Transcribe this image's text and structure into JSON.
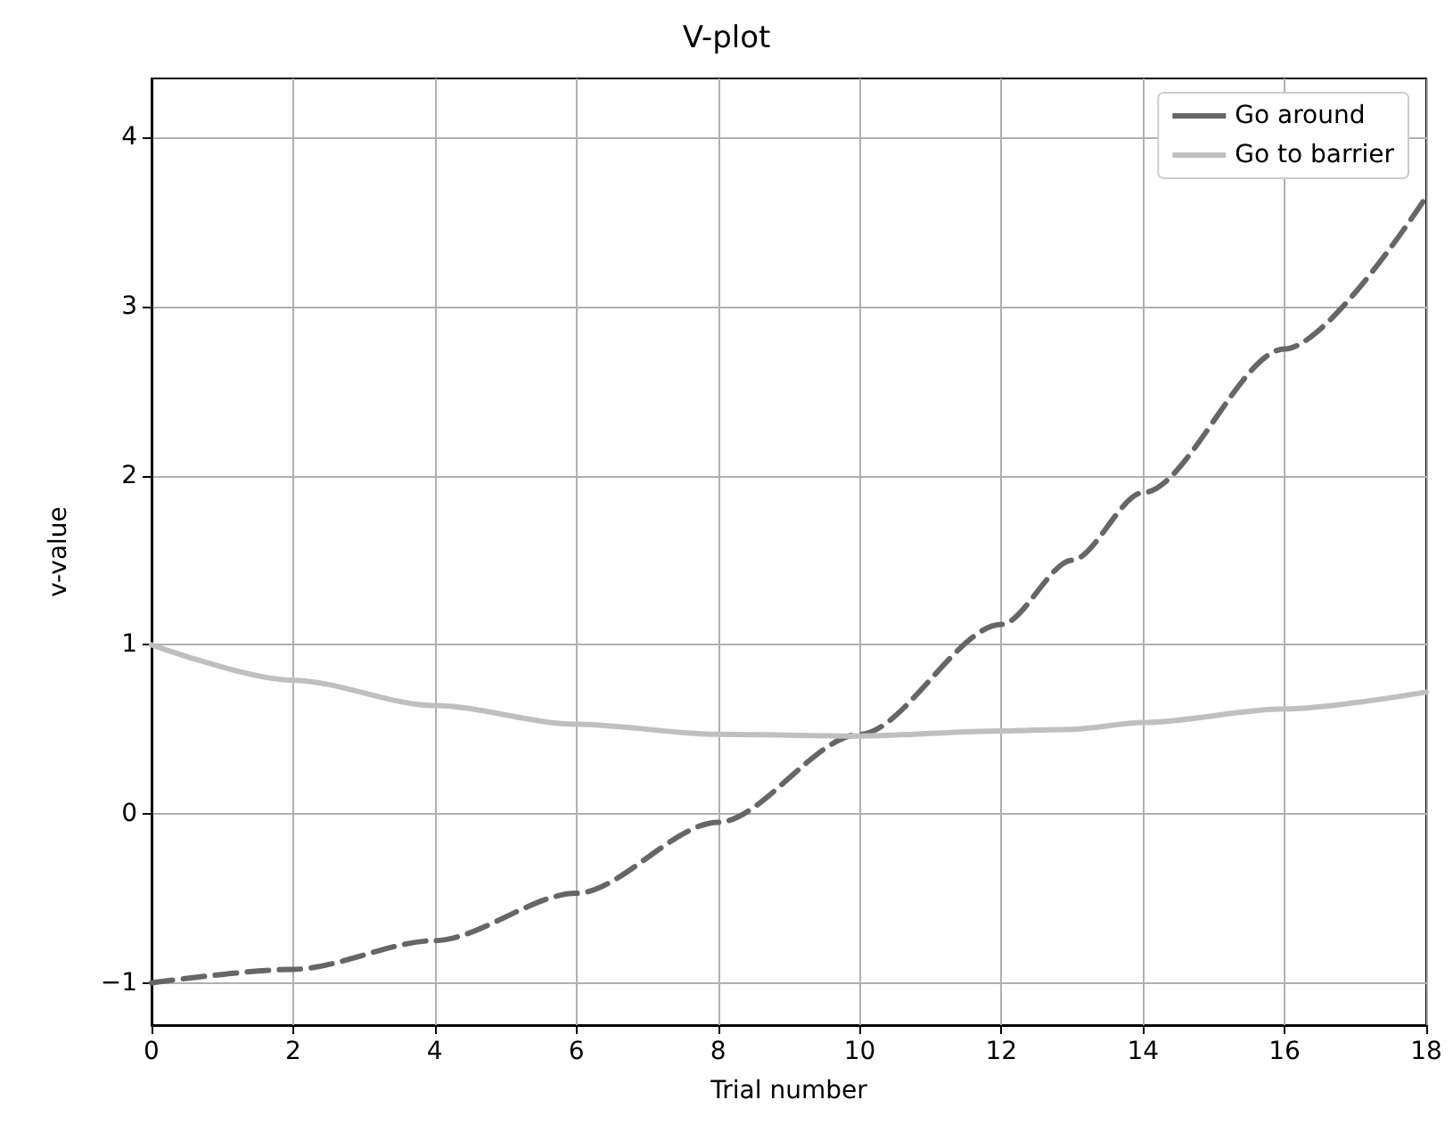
{
  "chart_data": {
    "type": "line",
    "title": "V-plot",
    "xlabel": "Trial number",
    "ylabel": "v-value",
    "x": [
      0,
      2,
      4,
      6,
      8,
      10,
      12,
      13,
      14,
      16,
      18
    ],
    "series": [
      {
        "name": "Go around",
        "color": "#666666",
        "line_style": "dashed",
        "values": [
          -1.0,
          -0.92,
          -0.75,
          -0.47,
          -0.05,
          0.47,
          1.12,
          1.5,
          1.9,
          2.75,
          3.65
        ]
      },
      {
        "name": "Go to barrier",
        "color": "#bfbfbf",
        "line_style": "solid",
        "values": [
          1.0,
          0.79,
          0.64,
          0.53,
          0.47,
          0.46,
          0.49,
          0.5,
          0.54,
          0.62,
          0.72
        ]
      }
    ],
    "xlim": [
      0,
      18
    ],
    "xticks": [
      0,
      2,
      4,
      6,
      8,
      10,
      12,
      14,
      16,
      18
    ],
    "ylim": [
      -1.25,
      4.35
    ],
    "yticks": [
      {
        "value": -1,
        "label": "−1"
      },
      0,
      1,
      2,
      3,
      4
    ],
    "grid": true,
    "legend": "top right",
    "marker": "none"
  }
}
